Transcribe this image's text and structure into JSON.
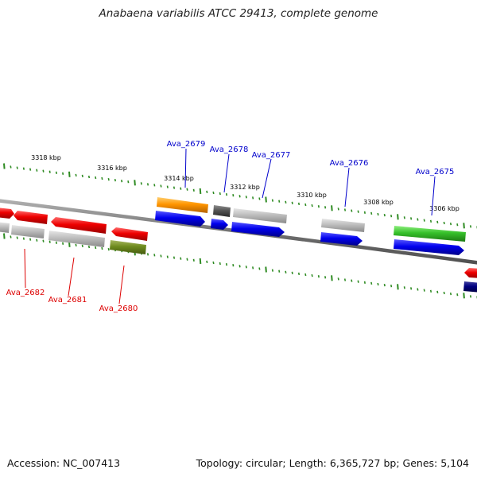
{
  "title": "Anabaena variabilis ATCC 29413, complete genome",
  "footer": {
    "accession": "Accession: NC_007413",
    "summary": "Topology: circular; Length: 6,365,727 bp; Genes: 5,104"
  },
  "colors": {
    "backbone": "#7f7f7f",
    "tick": "#2e8b22",
    "label_forward": "#0000cc",
    "label_reverse": "#dd0000",
    "ruler_text": "#000000"
  },
  "ruler": [
    {
      "label": "3318 kbp"
    },
    {
      "label": "3316 kbp"
    },
    {
      "label": "3314 kbp"
    },
    {
      "label": "3312 kbp"
    },
    {
      "label": "3310 kbp"
    },
    {
      "label": "3308 kbp"
    },
    {
      "label": "3306 kbp"
    }
  ],
  "gene_labels": [
    {
      "text": "Ava_2679",
      "strand": "forward"
    },
    {
      "text": "Ava_2678",
      "strand": "forward"
    },
    {
      "text": "Ava_2677",
      "strand": "forward"
    },
    {
      "text": "Ava_2676",
      "strand": "forward"
    },
    {
      "text": "Ava_2675",
      "strand": "forward"
    },
    {
      "text": "Ava_2682",
      "strand": "reverse"
    },
    {
      "text": "Ava_2681",
      "strand": "reverse"
    },
    {
      "text": "Ava_2680",
      "strand": "reverse"
    }
  ]
}
